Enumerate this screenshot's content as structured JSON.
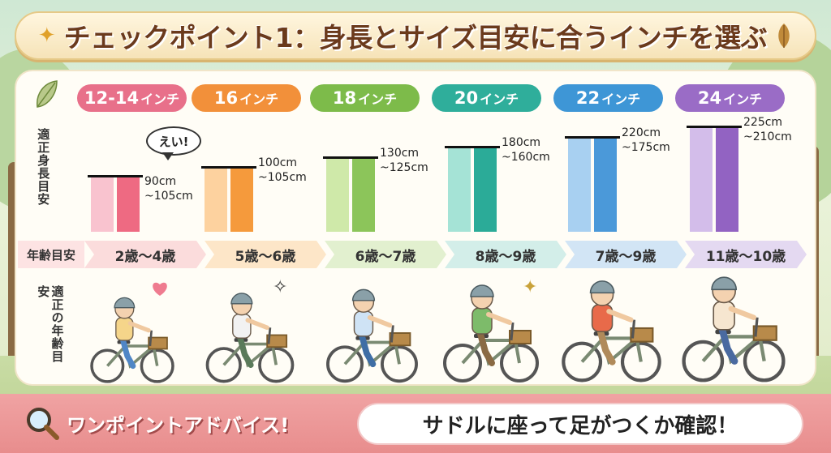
{
  "title": "チェックポイント1：身長とサイズ目安に合うインチを選ぶ",
  "labels": {
    "height_guide": "適正身長目安",
    "age_guide": "年齢目安",
    "age_guide_vertical": "適正の年齢目安",
    "speech_bubble": "えい!"
  },
  "sizes": [
    {
      "inch": "12-14",
      "unit": "インチ",
      "color": "#e8708a",
      "light": "#f9c3cf",
      "dark": "#ee6a82",
      "height": "90cm\n~105cm",
      "age": "2歳〜4歳",
      "age_color": "#fbdcdc"
    },
    {
      "inch": "16",
      "unit": "インチ",
      "color": "#f2903a",
      "light": "#fdd29f",
      "dark": "#f59a3c",
      "height": "100cm\n~105cm",
      "age": "5歳〜6歳",
      "age_color": "#fde6c8"
    },
    {
      "inch": "18",
      "unit": "インチ",
      "color": "#7dbb4a",
      "light": "#cfe9a9",
      "dark": "#8cc55a",
      "height": "130cm\n~125cm",
      "age": "6歳〜7歳",
      "age_color": "#e2f0cf"
    },
    {
      "inch": "20",
      "unit": "インチ",
      "color": "#2fae9b",
      "light": "#a5e3d6",
      "dark": "#2bab98",
      "height": "180cm\n~160cm",
      "age": "8歳〜9歳",
      "age_color": "#d3eee9"
    },
    {
      "inch": "22",
      "unit": "インチ",
      "color": "#3e96d6",
      "light": "#a8d0f1",
      "dark": "#4b99d9",
      "height": "220cm\n~175cm",
      "age": "7歳〜9歳",
      "age_color": "#d2e5f5"
    },
    {
      "inch": "24",
      "unit": "インチ",
      "color": "#9a6cc6",
      "light": "#d3bdea",
      "dark": "#9263c2",
      "height": "225cm\n~210cm",
      "age": "11歳〜10歳",
      "age_color": "#e4d9f1"
    }
  ],
  "advice": {
    "title": "ワンポイントアドバイス!",
    "text": "サドルに座って足がつくか確認！"
  }
}
